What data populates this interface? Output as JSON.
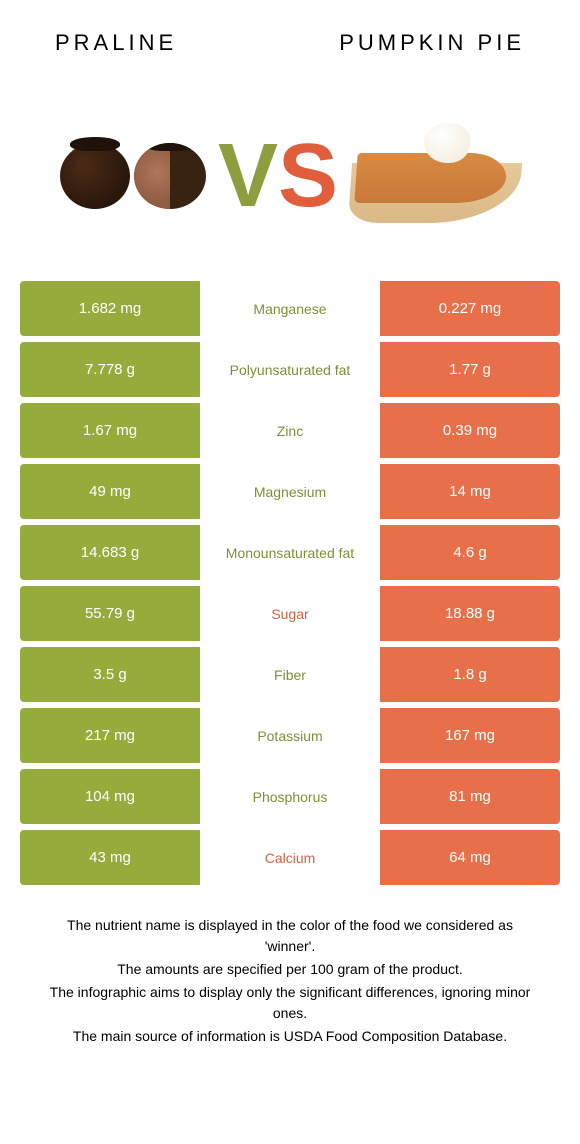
{
  "colors": {
    "left": "#95ab3c",
    "right": "#e76f4a",
    "left_label": "#7e8f38",
    "right_label": "#d55f3f"
  },
  "header": {
    "left_title": "Praline",
    "right_title": "Pumpkin pie"
  },
  "vs": {
    "v": "V",
    "s": "S"
  },
  "rows": [
    {
      "left": "1.682 mg",
      "mid": "Manganese",
      "right": "0.227 mg",
      "winner": "left"
    },
    {
      "left": "7.778 g",
      "mid": "Polyunsaturated fat",
      "right": "1.77 g",
      "winner": "left"
    },
    {
      "left": "1.67 mg",
      "mid": "Zinc",
      "right": "0.39 mg",
      "winner": "left"
    },
    {
      "left": "49 mg",
      "mid": "Magnesium",
      "right": "14 mg",
      "winner": "left"
    },
    {
      "left": "14.683 g",
      "mid": "Monounsaturated fat",
      "right": "4.6 g",
      "winner": "left"
    },
    {
      "left": "55.79 g",
      "mid": "Sugar",
      "right": "18.88 g",
      "winner": "right"
    },
    {
      "left": "3.5 g",
      "mid": "Fiber",
      "right": "1.8 g",
      "winner": "left"
    },
    {
      "left": "217 mg",
      "mid": "Potassium",
      "right": "167 mg",
      "winner": "left"
    },
    {
      "left": "104 mg",
      "mid": "Phosphorus",
      "right": "81 mg",
      "winner": "left"
    },
    {
      "left": "43 mg",
      "mid": "Calcium",
      "right": "64 mg",
      "winner": "right"
    }
  ],
  "notes": [
    "The nutrient name is displayed in the color of the food we considered as 'winner'.",
    "The amounts are specified per 100 gram of the product.",
    "The infographic aims to display only the significant differences, ignoring minor ones.",
    "The main source of information is USDA Food Composition Database."
  ]
}
